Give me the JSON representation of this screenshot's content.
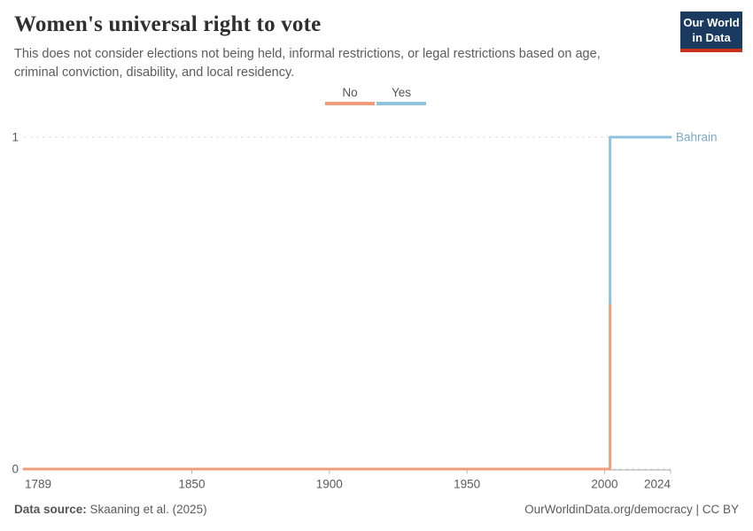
{
  "header": {
    "title": "Women's universal right to vote",
    "subtitle": "This does not consider elections not being held, informal restrictions, or legal restrictions based on age, criminal conviction, disability, and local residency.",
    "logo": {
      "line1": "Our World",
      "line2": "in Data",
      "bg_color": "#1B3A5F",
      "strip_color": "#C8321F"
    }
  },
  "footer": {
    "source_label": "Data source:",
    "source_value": "Skaaning et al. (2025)",
    "credit": "OurWorldinData.org/democracy | CC BY"
  },
  "chart_data": {
    "type": "line",
    "step": true,
    "title": "Women's universal right to vote",
    "entity": "Bahrain",
    "x_domain": [
      1789,
      2024
    ],
    "y_domain": [
      0,
      1
    ],
    "x_ticks": [
      1789,
      1850,
      1900,
      1950,
      2000,
      2024
    ],
    "y_ticks": [
      0,
      1
    ],
    "transition_year": 2002,
    "legend_position": "top-center",
    "grid": "dashed-horizontal",
    "legend": [
      {
        "label": "No",
        "color": "#F19D7B"
      },
      {
        "label": "Yes",
        "color": "#8FC3DD"
      }
    ],
    "series": [
      {
        "name": "No",
        "color": "#F19D7B",
        "points": [
          [
            1789,
            0
          ],
          [
            2002,
            0
          ]
        ]
      },
      {
        "name": "Yes",
        "color": "#8FC3DD",
        "points": [
          [
            2002,
            1
          ],
          [
            2024,
            1
          ]
        ]
      }
    ],
    "end_label": {
      "text": "Bahrain",
      "color": "#7CA9C7"
    },
    "grid_color": "#dcdcdc",
    "axis_color": "#a8a8a8",
    "tick_color": "#b8b8b8",
    "tick_label_color": "#5b5b5b"
  }
}
